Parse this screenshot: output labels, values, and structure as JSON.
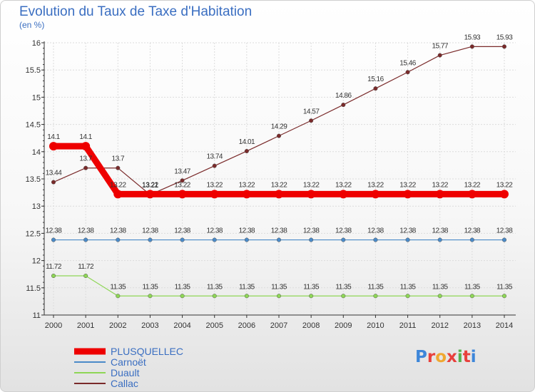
{
  "header": {
    "title": "Evolution du Taux de Taxe d'Habitation",
    "subtitle": "(en %)"
  },
  "logo": {
    "text": "Proxiti",
    "colors": [
      "#3d86d9",
      "#e8403c",
      "#f0a830",
      "#e8403c",
      "#56b04c",
      "#e8403c",
      "#3d86d9"
    ]
  },
  "chart_data": {
    "type": "line",
    "title": "Evolution du Taux de Taxe d'Habitation",
    "ylabel": "(en %)",
    "xlabel": "",
    "ylim": [
      11,
      16
    ],
    "yticks": [
      "11",
      "11.5",
      "12",
      "12.5",
      "13",
      "13.5",
      "14",
      "14.5",
      "15",
      "15.5",
      "16"
    ],
    "x": [
      "2000",
      "2001",
      "2002",
      "2003",
      "2004",
      "2005",
      "2006",
      "2007",
      "2008",
      "2009",
      "2010",
      "2011",
      "2012",
      "2013",
      "2014"
    ],
    "series": [
      {
        "name": "PLUSQUELLEC",
        "color": "#ee0000",
        "thick": true,
        "values": [
          14.1,
          14.1,
          13.22,
          13.22,
          13.22,
          13.22,
          13.22,
          13.22,
          13.22,
          13.22,
          13.22,
          13.22,
          13.22,
          13.22,
          13.22
        ],
        "labels": [
          "14.1",
          "14.1",
          "13.22",
          "13.22",
          "13.22",
          "13.22",
          "13.22",
          "13.22",
          "13.22",
          "13.22",
          "13.22",
          "13.22",
          "13.22",
          "13.22",
          "13.22"
        ]
      },
      {
        "name": "Carnoët",
        "color": "#4a8ac8",
        "thick": false,
        "values": [
          12.38,
          12.38,
          12.38,
          12.38,
          12.38,
          12.38,
          12.38,
          12.38,
          12.38,
          12.38,
          12.38,
          12.38,
          12.38,
          12.38,
          12.38
        ],
        "labels": [
          "12.38",
          "12.38",
          "12.38",
          "12.38",
          "12.38",
          "12.38",
          "12.38",
          "12.38",
          "12.38",
          "12.38",
          "12.38",
          "12.38",
          "12.38",
          "12.38",
          "12.38"
        ]
      },
      {
        "name": "Duault",
        "color": "#8ed656",
        "thick": false,
        "values": [
          11.72,
          11.72,
          11.35,
          11.35,
          11.35,
          11.35,
          11.35,
          11.35,
          11.35,
          11.35,
          11.35,
          11.35,
          11.35,
          11.35,
          11.35
        ],
        "labels": [
          "11.72",
          "11.72",
          "11.35",
          "11.35",
          "11.35",
          "11.35",
          "11.35",
          "11.35",
          "11.35",
          "11.35",
          "11.35",
          "11.35",
          "11.35",
          "11.35",
          "11.35"
        ]
      },
      {
        "name": "Callac",
        "color": "#7a2a2a",
        "thick": false,
        "values": [
          13.44,
          13.7,
          13.7,
          13.21,
          13.47,
          13.74,
          14.01,
          14.29,
          14.57,
          14.86,
          15.16,
          15.46,
          15.77,
          15.93,
          15.93
        ],
        "labels": [
          "13.44",
          "13.7",
          "13.7",
          "13.21",
          "13.47",
          "13.74",
          "14.01",
          "14.29",
          "14.57",
          "14.86",
          "15.16",
          "15.46",
          "15.77",
          "15.93",
          "15.93"
        ]
      }
    ]
  }
}
